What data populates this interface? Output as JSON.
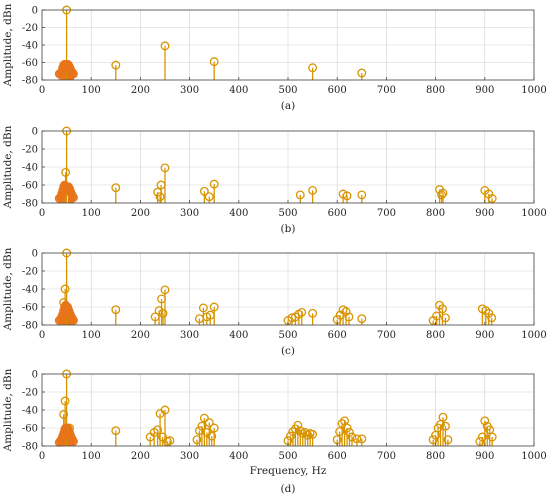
{
  "chart_data": [
    {
      "type": "stem",
      "caption": "(a)",
      "ylabel": "Amplitude, dBn",
      "xlabel": "",
      "xlim": [
        0,
        1000
      ],
      "ylim": [
        -80,
        0
      ],
      "xticks": [
        0,
        100,
        200,
        300,
        400,
        500,
        600,
        700,
        800,
        900,
        1000
      ],
      "yticks": [
        0,
        -20,
        -40,
        -60,
        -80
      ],
      "grid": true,
      "series": [
        {
          "color": "#d89400",
          "marker": "open-circle",
          "x": [
            50,
            150,
            250,
            350,
            550,
            650
          ],
          "y": [
            0,
            -63,
            -41,
            -59,
            -66,
            -72
          ]
        },
        {
          "color": "#e8741a",
          "marker": "filled-circle",
          "x": [
            35,
            38,
            40,
            42,
            44,
            46,
            48,
            52,
            54,
            56,
            58,
            60,
            62,
            64
          ],
          "y": [
            -73,
            -72,
            -70,
            -66,
            -63,
            -62,
            -64,
            -62,
            -63,
            -65,
            -68,
            -70,
            -72,
            -73
          ]
        }
      ]
    },
    {
      "type": "stem",
      "caption": "(b)",
      "ylabel": "Amplitude, dBn",
      "xlabel": "",
      "xlim": [
        0,
        1000
      ],
      "ylim": [
        -80,
        0
      ],
      "xticks": [
        0,
        100,
        200,
        300,
        400,
        500,
        600,
        700,
        800,
        900,
        1000
      ],
      "yticks": [
        0,
        -20,
        -40,
        -60,
        -80
      ],
      "grid": true,
      "series": [
        {
          "color": "#d89400",
          "marker": "open-circle",
          "x": [
            50,
            48,
            150,
            235,
            242,
            250,
            240,
            330,
            340,
            350,
            525,
            550,
            612,
            620,
            650,
            808,
            815,
            812,
            900,
            908,
            915
          ],
          "y": [
            0,
            -46,
            -63,
            -68,
            -60,
            -41,
            -73,
            -67,
            -73,
            -59,
            -71,
            -66,
            -70,
            -72,
            -71,
            -65,
            -69,
            -71,
            -66,
            -70,
            -75
          ]
        },
        {
          "color": "#e8741a",
          "marker": "filled-circle",
          "x": [
            35,
            38,
            40,
            42,
            44,
            46,
            54,
            56,
            58,
            60,
            62,
            64
          ],
          "y": [
            -75,
            -73,
            -70,
            -66,
            -62,
            -60,
            -62,
            -64,
            -67,
            -70,
            -72,
            -74
          ]
        }
      ]
    },
    {
      "type": "stem",
      "caption": "(c)",
      "ylabel": "Amplitude, dBn",
      "xlabel": "",
      "xlim": [
        0,
        1000
      ],
      "ylim": [
        -80,
        0
      ],
      "xticks": [
        0,
        100,
        200,
        300,
        400,
        500,
        600,
        700,
        800,
        900,
        1000
      ],
      "yticks": [
        0,
        -20,
        -40,
        -60,
        -80
      ],
      "grid": true,
      "series": [
        {
          "color": "#d89400",
          "marker": "open-circle",
          "x": [
            50,
            47,
            44,
            150,
            230,
            238,
            243,
            250,
            246,
            320,
            328,
            335,
            342,
            350,
            500,
            508,
            515,
            522,
            528,
            550,
            600,
            606,
            612,
            618,
            624,
            650,
            795,
            802,
            808,
            814,
            820,
            895,
            902,
            908,
            914
          ],
          "y": [
            0,
            -40,
            -55,
            -63,
            -71,
            -64,
            -51,
            -41,
            -67,
            -73,
            -61,
            -71,
            -69,
            -60,
            -75,
            -72,
            -71,
            -68,
            -66,
            -67,
            -74,
            -69,
            -63,
            -65,
            -71,
            -73,
            -75,
            -70,
            -58,
            -62,
            -72,
            -62,
            -64,
            -67,
            -72
          ]
        },
        {
          "color": "#e8741a",
          "marker": "filled-circle",
          "x": [
            35,
            38,
            40,
            42,
            44,
            46,
            48,
            52,
            54,
            56,
            58,
            60,
            62,
            64
          ],
          "y": [
            -75,
            -73,
            -71,
            -68,
            -64,
            -60,
            -58,
            -60,
            -63,
            -66,
            -69,
            -71,
            -73,
            -75
          ]
        }
      ]
    },
    {
      "type": "stem",
      "caption": "(d)",
      "ylabel": "Amplitude, dBn",
      "xlabel": "Frequency, Hz",
      "xlim": [
        0,
        1000
      ],
      "ylim": [
        -80,
        0
      ],
      "xticks": [
        0,
        100,
        200,
        300,
        400,
        500,
        600,
        700,
        800,
        900,
        1000
      ],
      "yticks": [
        0,
        -20,
        -40,
        -60,
        -80
      ],
      "grid": true,
      "series": [
        {
          "color": "#d89400",
          "marker": "open-circle",
          "x": [
            50,
            47,
            44,
            56,
            150,
            220,
            228,
            235,
            240,
            245,
            250,
            255,
            260,
            315,
            320,
            325,
            330,
            335,
            340,
            345,
            350,
            500,
            505,
            510,
            515,
            520,
            525,
            530,
            535,
            540,
            545,
            550,
            600,
            605,
            610,
            615,
            620,
            625,
            630,
            640,
            650,
            795,
            800,
            805,
            810,
            815,
            820,
            825,
            890,
            895,
            900,
            905,
            910,
            915
          ],
          "y": [
            0,
            -30,
            -45,
            -60,
            -63,
            -70,
            -65,
            -62,
            -44,
            -70,
            -40,
            -75,
            -74,
            -73,
            -63,
            -58,
            -49,
            -65,
            -54,
            -69,
            -60,
            -74,
            -69,
            -64,
            -61,
            -57,
            -63,
            -66,
            -65,
            -68,
            -66,
            -67,
            -73,
            -64,
            -55,
            -52,
            -60,
            -65,
            -70,
            -72,
            -72,
            -73,
            -68,
            -60,
            -56,
            -48,
            -58,
            -73,
            -75,
            -70,
            -52,
            -58,
            -62,
            -70
          ]
        },
        {
          "color": "#e8741a",
          "marker": "filled-circle",
          "x": [
            35,
            38,
            40,
            42,
            44,
            46,
            48,
            52,
            54,
            56,
            58,
            60,
            62,
            64
          ],
          "y": [
            -76,
            -74,
            -72,
            -69,
            -66,
            -62,
            -60,
            -60,
            -62,
            -65,
            -68,
            -71,
            -73,
            -75
          ]
        }
      ]
    }
  ]
}
